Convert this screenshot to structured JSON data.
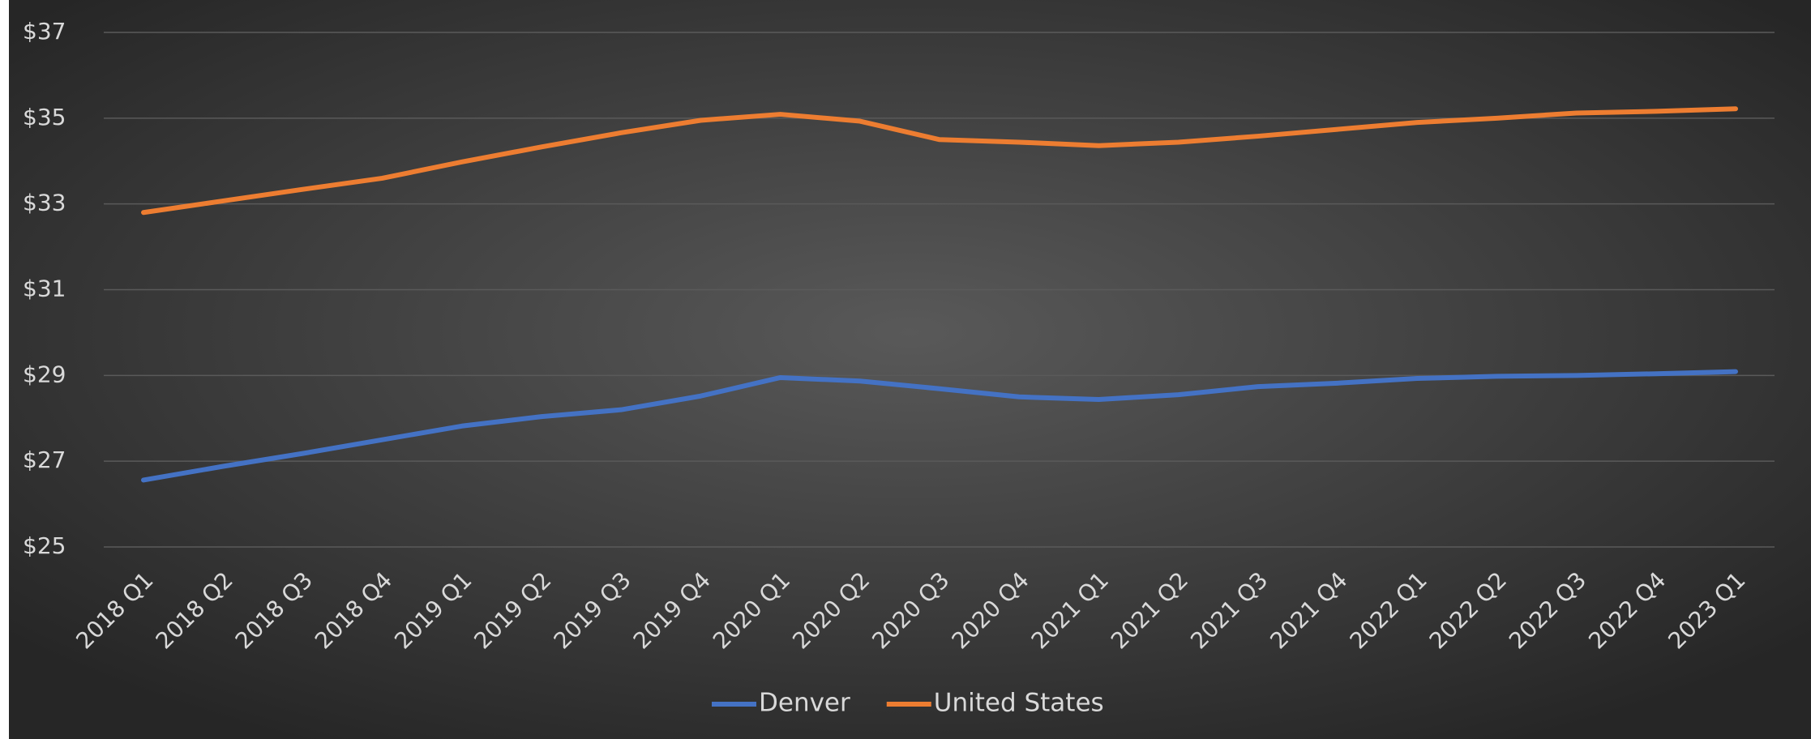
{
  "chart_data": {
    "type": "line",
    "categories": [
      "2018 Q1",
      "2018 Q2",
      "2018 Q3",
      "2018 Q4",
      "2019 Q1",
      "2019 Q2",
      "2019 Q3",
      "2019 Q4",
      "2020 Q1",
      "2020 Q2",
      "2020 Q3",
      "2020 Q4",
      "2021 Q1",
      "2021 Q2",
      "2021 Q3",
      "2021 Q4",
      "2022 Q1",
      "2022 Q2",
      "2022 Q3",
      "2022 Q4",
      "2023 Q1"
    ],
    "series": [
      {
        "name": "Denver",
        "color": "#4472c4",
        "values": [
          26.56,
          26.88,
          27.18,
          27.5,
          27.82,
          28.04,
          28.2,
          28.52,
          28.95,
          28.87,
          28.69,
          28.5,
          28.44,
          28.55,
          28.74,
          28.82,
          28.93,
          28.98,
          29.0,
          29.04,
          29.09
        ]
      },
      {
        "name": "United States",
        "color": "#ed7d31",
        "values": [
          32.8,
          33.07,
          33.34,
          33.6,
          33.98,
          34.33,
          34.66,
          34.95,
          35.09,
          34.93,
          34.5,
          34.44,
          34.36,
          34.44,
          34.58,
          34.74,
          34.9,
          35.0,
          35.12,
          35.16,
          35.22
        ]
      }
    ],
    "ylim": [
      25,
      37
    ],
    "yticks": [
      {
        "value": 25,
        "label": "$25"
      },
      {
        "value": 27,
        "label": "$27"
      },
      {
        "value": 29,
        "label": "$29"
      },
      {
        "value": 31,
        "label": "$31"
      },
      {
        "value": 33,
        "label": "$33"
      },
      {
        "value": 35,
        "label": "$35"
      },
      {
        "value": 37,
        "label": "$37"
      }
    ],
    "grid": true,
    "legend": "bottom"
  }
}
